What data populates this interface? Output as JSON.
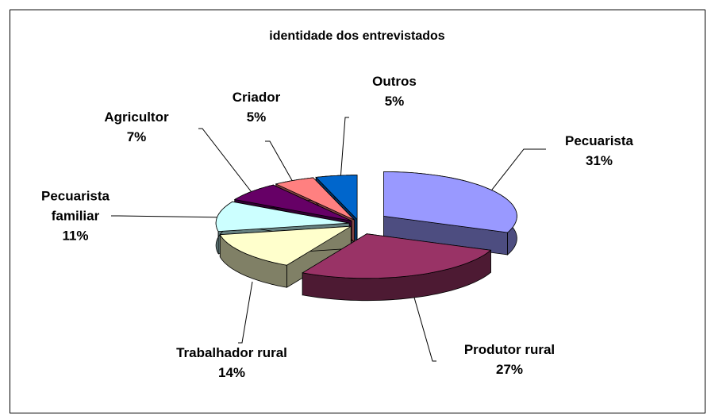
{
  "chart_data": {
    "type": "pie",
    "title": "identidade dos entrevistados",
    "categories": [
      "Pecuarista",
      "Produtor rural",
      "Trabalhador rural",
      "Pecuarista familiar",
      "Agricultor",
      "Criador",
      "Outros"
    ],
    "values": [
      31,
      27,
      14,
      11,
      7,
      5,
      5
    ],
    "value_labels": [
      "31%",
      "27%",
      "14%",
      "11%",
      "7%",
      "5%",
      "5%"
    ],
    "colors": [
      "#9999ff",
      "#993366",
      "#ffffcc",
      "#ccffff",
      "#660066",
      "#ff8080",
      "#0066cc"
    ]
  }
}
